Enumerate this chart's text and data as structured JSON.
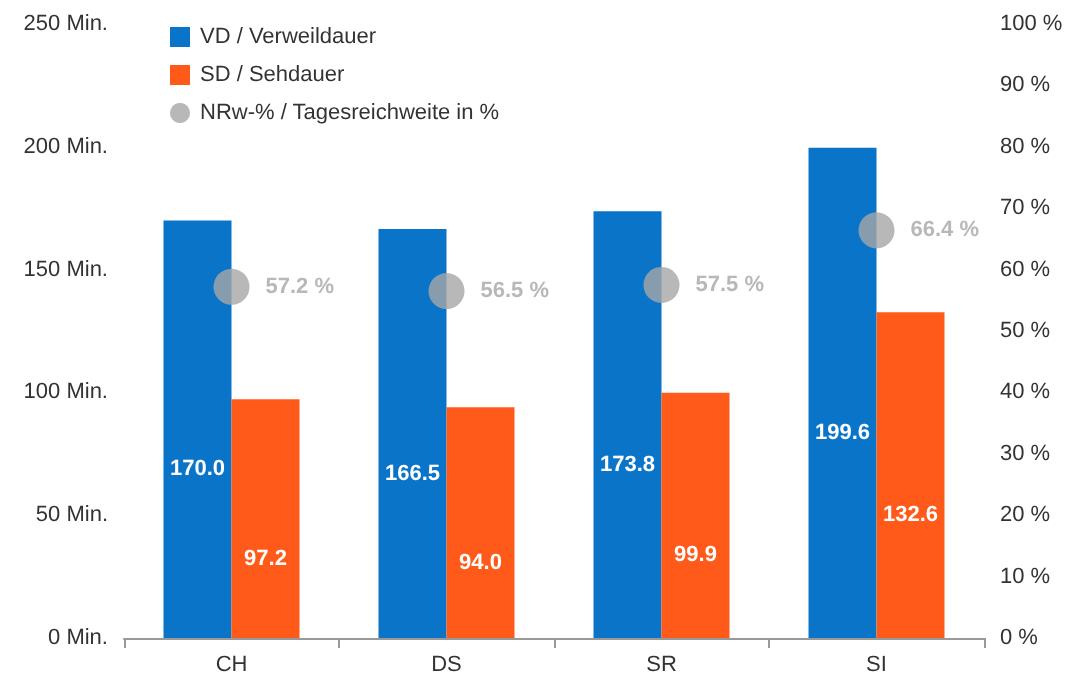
{
  "chart_data": {
    "type": "bar",
    "categories": [
      "CH",
      "DS",
      "SR",
      "SI"
    ],
    "series": [
      {
        "name": "VD / Verweildauer",
        "color": "#0a74c8",
        "values": [
          170.0,
          166.5,
          173.8,
          199.6
        ],
        "value_labels": [
          "170.0",
          "166.5",
          "173.8",
          "199.6"
        ]
      },
      {
        "name": "SD / Sehdauer",
        "color": "#ff5a1a",
        "values": [
          97.2,
          94.0,
          99.9,
          132.6
        ],
        "value_labels": [
          "97.2",
          "94.0",
          "99.9",
          "132.6"
        ]
      },
      {
        "name": "NRw-% / Tagesreichweite in %",
        "type": "scatter",
        "axis": "y2",
        "color": "#a6a6a6",
        "x": [
          "CH",
          "DS",
          "SR",
          "SI"
        ],
        "values": [
          57.2,
          56.5,
          57.5,
          66.4
        ],
        "value_labels": [
          "57.2 %",
          "56.5 %",
          "57.5 %",
          "66.4 %"
        ]
      }
    ],
    "ylim": [
      0,
      250
    ],
    "yticks": [
      {
        "value": 0,
        "label": "0 Min."
      },
      {
        "value": 50,
        "label": "50 Min."
      },
      {
        "value": 100,
        "label": "100 Min."
      },
      {
        "value": 150,
        "label": "150 Min."
      },
      {
        "value": 200,
        "label": "200 Min."
      },
      {
        "value": 250,
        "label": "250 Min."
      }
    ],
    "y2lim": [
      0,
      100
    ],
    "y2ticks": [
      {
        "value": 0,
        "label": "0 %"
      },
      {
        "value": 10,
        "label": "10 %"
      },
      {
        "value": 20,
        "label": "20 %"
      },
      {
        "value": 30,
        "label": "30 %"
      },
      {
        "value": 40,
        "label": "40 %"
      },
      {
        "value": 50,
        "label": "50 %"
      },
      {
        "value": 60,
        "label": "60 %"
      },
      {
        "value": 70,
        "label": "70 %"
      },
      {
        "value": 80,
        "label": "80 %"
      },
      {
        "value": 90,
        "label": "90 %"
      },
      {
        "value": 100,
        "label": "100 %"
      }
    ],
    "marker": "circle",
    "grid": false,
    "legend": "top left"
  }
}
